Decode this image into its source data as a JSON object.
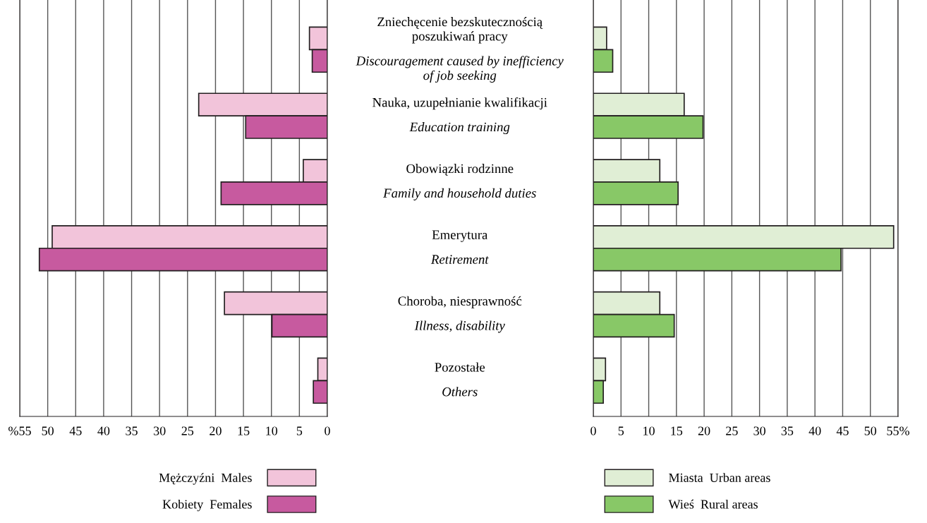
{
  "chart_data": [
    {
      "type": "bar",
      "orientation": "horizontal",
      "categories": [
        "Zniechęcenie bezskutecznością\nposzukiwań pracy",
        "Nauka, uzupełnianie kwalifikacji",
        "Obowiązki rodzinne",
        "Emerytura",
        "Choroba, niesprawność",
        "Pozostałe"
      ],
      "series": [
        {
          "name": "Mężczyźni  Males",
          "color": "#f2c4da",
          "values": [
            3.2,
            23.0,
            4.3,
            49.2,
            18.4,
            1.7
          ]
        },
        {
          "name": "Kobiety  Females",
          "color": "#c75a9f",
          "values": [
            2.7,
            14.6,
            19.0,
            51.5,
            9.9,
            2.5
          ]
        }
      ],
      "xlim": [
        55,
        0
      ],
      "xticks": [
        {
          "value": 55,
          "label": "%55"
        },
        50,
        45,
        40,
        35,
        30,
        25,
        20,
        15,
        10,
        5,
        0
      ],
      "grid": "x",
      "legend": "bottom right"
    },
    {
      "type": "bar",
      "orientation": "horizontal",
      "categories": [
        "Discouragement caused by inefficiency\nof job seeking",
        "Education training",
        "Family and household duties",
        "Retirement",
        "Illness, disability",
        "Others"
      ],
      "series": [
        {
          "name": "Miasta  Urban areas",
          "color": "#e0eed5",
          "values": [
            2.4,
            16.4,
            12.0,
            54.2,
            12.0,
            2.2
          ]
        },
        {
          "name": "Wieś  Rural areas",
          "color": "#88c867",
          "values": [
            3.5,
            19.8,
            15.3,
            44.7,
            14.6,
            1.8
          ]
        }
      ],
      "xlim": [
        0,
        55
      ],
      "xticks": [
        0,
        5,
        10,
        15,
        20,
        25,
        30,
        35,
        40,
        45,
        50,
        {
          "value": 55,
          "label": "55%"
        }
      ],
      "grid": "x",
      "legend": "bottom left"
    }
  ]
}
